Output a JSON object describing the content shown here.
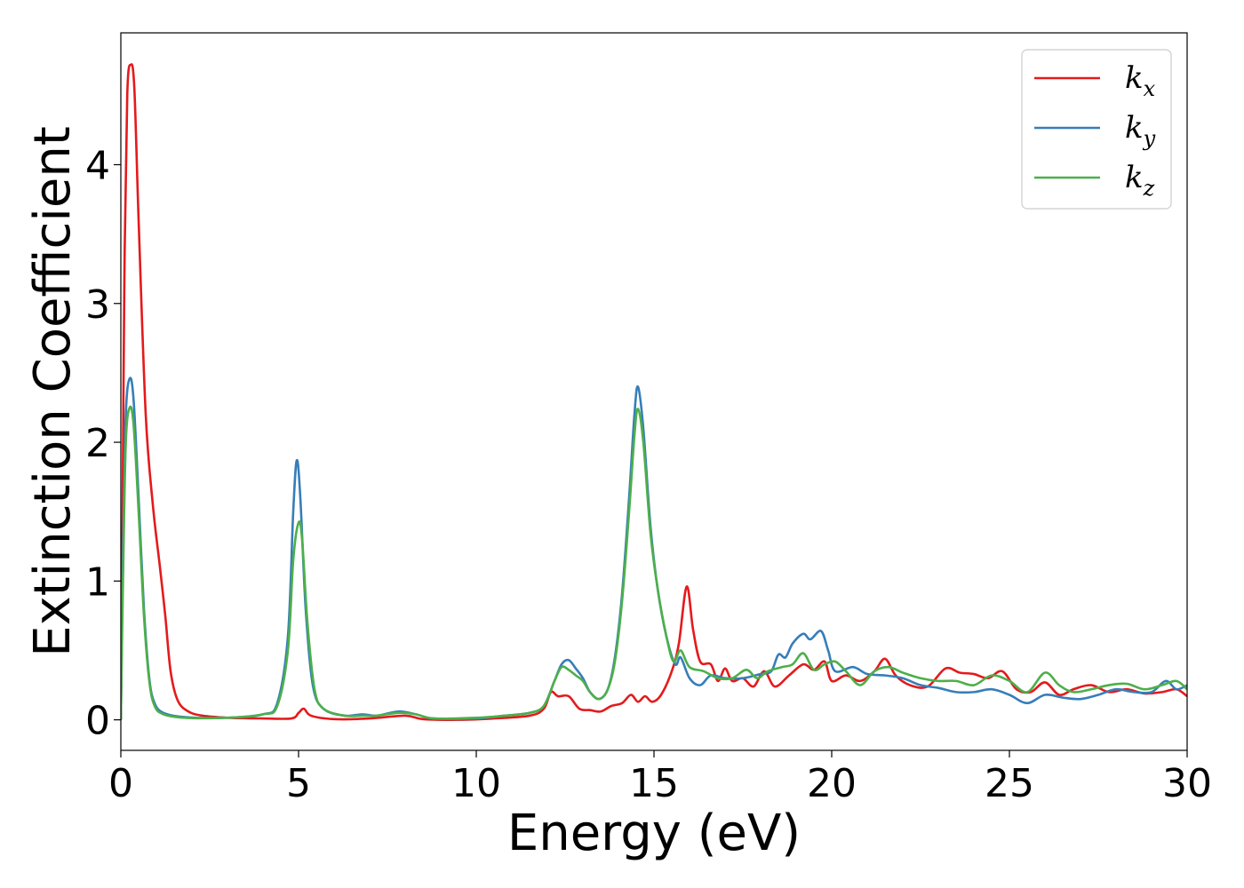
{
  "chart_data": {
    "type": "line",
    "title": "",
    "xlabel": "Energy (eV)",
    "ylabel": "Extinction Coefficient",
    "xlim": [
      0,
      30
    ],
    "ylim": [
      -0.22,
      4.95
    ],
    "xticks": [
      0,
      5,
      10,
      15,
      20,
      25,
      30
    ],
    "xtick_labels": [
      "0",
      "5",
      "10",
      "15",
      "20",
      "25",
      "30"
    ],
    "yticks": [
      0,
      1,
      2,
      3,
      4
    ],
    "ytick_labels": [
      "0",
      "1",
      "2",
      "3",
      "4"
    ],
    "grid": false,
    "legend_position": "top-right",
    "series": [
      {
        "name": "k_x",
        "label_base": "k",
        "label_sub": "x",
        "color": "#e41a1c",
        "points": [
          [
            0.0,
            0.0
          ],
          [
            0.05,
            1.5
          ],
          [
            0.1,
            3.2
          ],
          [
            0.18,
            4.5
          ],
          [
            0.28,
            4.72
          ],
          [
            0.38,
            4.55
          ],
          [
            0.5,
            3.6
          ],
          [
            0.7,
            2.2
          ],
          [
            0.9,
            1.55
          ],
          [
            1.1,
            1.1
          ],
          [
            1.25,
            0.75
          ],
          [
            1.4,
            0.35
          ],
          [
            1.6,
            0.14
          ],
          [
            1.9,
            0.06
          ],
          [
            2.3,
            0.03
          ],
          [
            3.0,
            0.015
          ],
          [
            4.0,
            0.01
          ],
          [
            4.8,
            0.01
          ],
          [
            5.0,
            0.05
          ],
          [
            5.15,
            0.08
          ],
          [
            5.35,
            0.03
          ],
          [
            6.0,
            0.005
          ],
          [
            7.0,
            0.01
          ],
          [
            8.0,
            0.03
          ],
          [
            8.5,
            0.005
          ],
          [
            9.5,
            0.0
          ],
          [
            10.5,
            0.01
          ],
          [
            11.5,
            0.03
          ],
          [
            11.9,
            0.08
          ],
          [
            12.1,
            0.2
          ],
          [
            12.3,
            0.17
          ],
          [
            12.6,
            0.17
          ],
          [
            12.9,
            0.08
          ],
          [
            13.2,
            0.07
          ],
          [
            13.5,
            0.06
          ],
          [
            13.8,
            0.1
          ],
          [
            14.1,
            0.12
          ],
          [
            14.35,
            0.18
          ],
          [
            14.55,
            0.13
          ],
          [
            14.75,
            0.17
          ],
          [
            14.95,
            0.13
          ],
          [
            15.2,
            0.18
          ],
          [
            15.5,
            0.35
          ],
          [
            15.7,
            0.55
          ],
          [
            15.92,
            0.96
          ],
          [
            16.1,
            0.65
          ],
          [
            16.3,
            0.42
          ],
          [
            16.6,
            0.4
          ],
          [
            16.8,
            0.28
          ],
          [
            17.0,
            0.37
          ],
          [
            17.2,
            0.28
          ],
          [
            17.5,
            0.3
          ],
          [
            17.8,
            0.24
          ],
          [
            18.1,
            0.35
          ],
          [
            18.4,
            0.24
          ],
          [
            18.8,
            0.32
          ],
          [
            19.2,
            0.4
          ],
          [
            19.5,
            0.36
          ],
          [
            19.8,
            0.42
          ],
          [
            20.0,
            0.28
          ],
          [
            20.4,
            0.32
          ],
          [
            20.8,
            0.28
          ],
          [
            21.2,
            0.35
          ],
          [
            21.5,
            0.44
          ],
          [
            21.8,
            0.32
          ],
          [
            22.2,
            0.25
          ],
          [
            22.7,
            0.24
          ],
          [
            23.2,
            0.37
          ],
          [
            23.6,
            0.34
          ],
          [
            24.0,
            0.33
          ],
          [
            24.4,
            0.3
          ],
          [
            24.8,
            0.35
          ],
          [
            25.2,
            0.22
          ],
          [
            25.6,
            0.2
          ],
          [
            26.0,
            0.27
          ],
          [
            26.4,
            0.18
          ],
          [
            26.8,
            0.22
          ],
          [
            27.3,
            0.25
          ],
          [
            27.8,
            0.2
          ],
          [
            28.3,
            0.22
          ],
          [
            28.8,
            0.19
          ],
          [
            29.3,
            0.2
          ],
          [
            29.7,
            0.22
          ],
          [
            30.0,
            0.17
          ]
        ]
      },
      {
        "name": "k_y",
        "label_base": "k",
        "label_sub": "y",
        "color": "#377eb8",
        "points": [
          [
            0.0,
            0.0
          ],
          [
            0.06,
            1.2
          ],
          [
            0.14,
            2.2
          ],
          [
            0.25,
            2.46
          ],
          [
            0.36,
            2.3
          ],
          [
            0.5,
            1.6
          ],
          [
            0.65,
            0.8
          ],
          [
            0.8,
            0.3
          ],
          [
            0.95,
            0.12
          ],
          [
            1.2,
            0.05
          ],
          [
            1.8,
            0.02
          ],
          [
            3.0,
            0.015
          ],
          [
            4.0,
            0.04
          ],
          [
            4.4,
            0.12
          ],
          [
            4.7,
            0.6
          ],
          [
            4.85,
            1.5
          ],
          [
            4.95,
            1.87
          ],
          [
            5.05,
            1.6
          ],
          [
            5.2,
            0.8
          ],
          [
            5.4,
            0.25
          ],
          [
            5.7,
            0.08
          ],
          [
            6.3,
            0.03
          ],
          [
            6.8,
            0.04
          ],
          [
            7.2,
            0.03
          ],
          [
            7.8,
            0.06
          ],
          [
            8.3,
            0.04
          ],
          [
            8.8,
            0.01
          ],
          [
            10.0,
            0.01
          ],
          [
            10.8,
            0.03
          ],
          [
            11.5,
            0.05
          ],
          [
            11.9,
            0.1
          ],
          [
            12.2,
            0.28
          ],
          [
            12.4,
            0.4
          ],
          [
            12.6,
            0.43
          ],
          [
            12.8,
            0.37
          ],
          [
            13.0,
            0.3
          ],
          [
            13.2,
            0.2
          ],
          [
            13.45,
            0.15
          ],
          [
            13.7,
            0.22
          ],
          [
            13.9,
            0.45
          ],
          [
            14.1,
            0.9
          ],
          [
            14.3,
            1.6
          ],
          [
            14.45,
            2.2
          ],
          [
            14.55,
            2.4
          ],
          [
            14.7,
            2.1
          ],
          [
            14.9,
            1.4
          ],
          [
            15.1,
            0.95
          ],
          [
            15.35,
            0.6
          ],
          [
            15.6,
            0.4
          ],
          [
            15.75,
            0.45
          ],
          [
            16.0,
            0.3
          ],
          [
            16.3,
            0.25
          ],
          [
            16.6,
            0.32
          ],
          [
            17.0,
            0.3
          ],
          [
            17.5,
            0.3
          ],
          [
            18.0,
            0.33
          ],
          [
            18.3,
            0.35
          ],
          [
            18.5,
            0.47
          ],
          [
            18.7,
            0.45
          ],
          [
            18.9,
            0.55
          ],
          [
            19.2,
            0.62
          ],
          [
            19.4,
            0.58
          ],
          [
            19.7,
            0.64
          ],
          [
            19.9,
            0.5
          ],
          [
            20.1,
            0.35
          ],
          [
            20.6,
            0.38
          ],
          [
            21.0,
            0.33
          ],
          [
            21.5,
            0.32
          ],
          [
            22.0,
            0.3
          ],
          [
            22.5,
            0.25
          ],
          [
            23.0,
            0.23
          ],
          [
            23.5,
            0.2
          ],
          [
            24.0,
            0.2
          ],
          [
            24.5,
            0.22
          ],
          [
            25.0,
            0.18
          ],
          [
            25.5,
            0.12
          ],
          [
            26.0,
            0.18
          ],
          [
            26.5,
            0.16
          ],
          [
            27.0,
            0.15
          ],
          [
            27.5,
            0.18
          ],
          [
            28.0,
            0.22
          ],
          [
            28.5,
            0.2
          ],
          [
            29.0,
            0.2
          ],
          [
            29.4,
            0.28
          ],
          [
            29.7,
            0.22
          ],
          [
            30.0,
            0.25
          ]
        ]
      },
      {
        "name": "k_z",
        "label_base": "k",
        "label_sub": "z",
        "color": "#4daf4a",
        "points": [
          [
            0.0,
            0.0
          ],
          [
            0.06,
            1.0
          ],
          [
            0.14,
            2.0
          ],
          [
            0.25,
            2.25
          ],
          [
            0.36,
            2.12
          ],
          [
            0.5,
            1.5
          ],
          [
            0.65,
            0.75
          ],
          [
            0.8,
            0.28
          ],
          [
            0.95,
            0.1
          ],
          [
            1.2,
            0.04
          ],
          [
            1.8,
            0.015
          ],
          [
            3.0,
            0.015
          ],
          [
            4.0,
            0.04
          ],
          [
            4.4,
            0.1
          ],
          [
            4.7,
            0.5
          ],
          [
            4.85,
            1.15
          ],
          [
            5.0,
            1.42
          ],
          [
            5.1,
            1.3
          ],
          [
            5.25,
            0.7
          ],
          [
            5.45,
            0.22
          ],
          [
            5.7,
            0.08
          ],
          [
            6.3,
            0.03
          ],
          [
            6.8,
            0.03
          ],
          [
            7.2,
            0.03
          ],
          [
            7.8,
            0.05
          ],
          [
            8.3,
            0.04
          ],
          [
            8.8,
            0.01
          ],
          [
            10.0,
            0.015
          ],
          [
            10.8,
            0.03
          ],
          [
            11.5,
            0.05
          ],
          [
            11.9,
            0.1
          ],
          [
            12.2,
            0.28
          ],
          [
            12.4,
            0.38
          ],
          [
            12.6,
            0.36
          ],
          [
            12.8,
            0.32
          ],
          [
            13.0,
            0.28
          ],
          [
            13.2,
            0.2
          ],
          [
            13.45,
            0.15
          ],
          [
            13.7,
            0.22
          ],
          [
            13.9,
            0.42
          ],
          [
            14.1,
            0.85
          ],
          [
            14.3,
            1.5
          ],
          [
            14.45,
            2.05
          ],
          [
            14.55,
            2.24
          ],
          [
            14.7,
            2.0
          ],
          [
            14.9,
            1.35
          ],
          [
            15.1,
            0.95
          ],
          [
            15.35,
            0.6
          ],
          [
            15.55,
            0.42
          ],
          [
            15.75,
            0.5
          ],
          [
            16.0,
            0.38
          ],
          [
            16.4,
            0.35
          ],
          [
            16.8,
            0.3
          ],
          [
            17.2,
            0.3
          ],
          [
            17.6,
            0.36
          ],
          [
            17.9,
            0.3
          ],
          [
            18.2,
            0.35
          ],
          [
            18.6,
            0.38
          ],
          [
            18.9,
            0.4
          ],
          [
            19.2,
            0.48
          ],
          [
            19.5,
            0.36
          ],
          [
            19.8,
            0.4
          ],
          [
            20.1,
            0.42
          ],
          [
            20.4,
            0.35
          ],
          [
            20.8,
            0.25
          ],
          [
            21.2,
            0.35
          ],
          [
            21.6,
            0.38
          ],
          [
            22.0,
            0.34
          ],
          [
            22.5,
            0.3
          ],
          [
            23.0,
            0.28
          ],
          [
            23.5,
            0.28
          ],
          [
            24.0,
            0.25
          ],
          [
            24.5,
            0.32
          ],
          [
            25.0,
            0.28
          ],
          [
            25.5,
            0.2
          ],
          [
            26.0,
            0.34
          ],
          [
            26.4,
            0.25
          ],
          [
            26.8,
            0.2
          ],
          [
            27.3,
            0.22
          ],
          [
            27.8,
            0.25
          ],
          [
            28.3,
            0.26
          ],
          [
            28.8,
            0.22
          ],
          [
            29.3,
            0.25
          ],
          [
            29.7,
            0.28
          ],
          [
            30.0,
            0.22
          ]
        ]
      }
    ]
  }
}
